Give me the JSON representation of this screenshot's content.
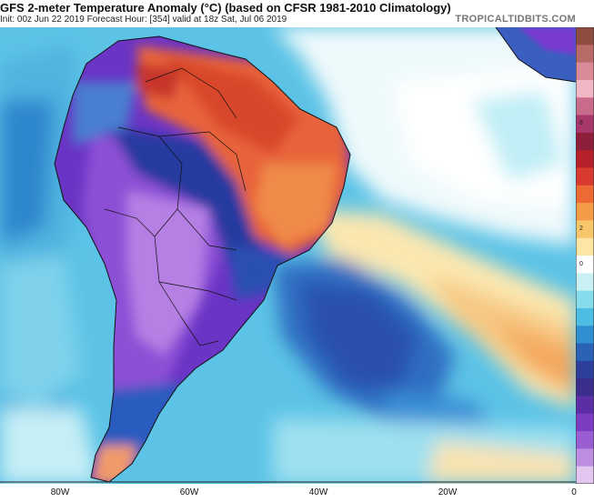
{
  "header": {
    "title": "GFS 2-meter Temperature Anomaly (°C) (based on CFSR 1981-2010 Climatology)",
    "subtitle": "Init: 00z Jun 22 2019   Forecast Hour: [354]   valid at 18z Sat, Jul 06 2019",
    "brand": "TROPICALTIDBITS.COM"
  },
  "map": {
    "region": "South America and South Atlantic",
    "x_axis_labels": [
      "80W",
      "60W",
      "40W",
      "20W",
      "0"
    ]
  },
  "colorbar": {
    "colors": [
      "#8f4d3f",
      "#b86a66",
      "#d98a96",
      "#f1b6c4",
      "#c96b8a",
      "#a8386b",
      "#8e1f3a",
      "#b5202a",
      "#d93a2f",
      "#ee6a34",
      "#f59a47",
      "#f7c66b",
      "#fbe6a6",
      "#ffffff",
      "#c9f1f4",
      "#86dcec",
      "#4dbde4",
      "#2f8fd1",
      "#2b62b6",
      "#2d3f9a",
      "#3a2d8c",
      "#5b2ea6",
      "#7c3cc2",
      "#9a5ed2",
      "#bd8de2",
      "#e2c6f0"
    ],
    "tick_labels": [
      "",
      "",
      "",
      "",
      "",
      "8",
      "",
      "",
      "",
      "",
      "",
      "2",
      "",
      "0",
      "",
      "",
      "",
      "",
      "",
      "",
      "",
      "",
      "",
      "",
      "",
      ""
    ]
  },
  "colors": {
    "ocean_base": "#4fb9e3",
    "land_cold": "#7a3bd0",
    "land_warm": "#e8643a"
  }
}
